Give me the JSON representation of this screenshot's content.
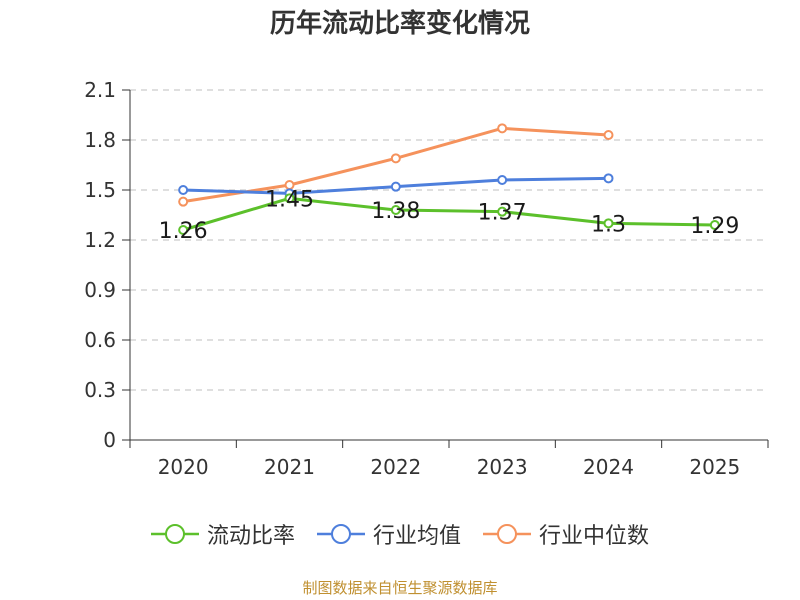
{
  "chart_data": {
    "type": "line",
    "title": "历年流动比率变化情况",
    "categories": [
      "2020",
      "2021",
      "2022",
      "2023",
      "2024",
      "2025"
    ],
    "ylim": [
      0,
      2.1
    ],
    "yticks": [
      "0",
      "0.3",
      "0.6",
      "0.9",
      "1.2",
      "1.5",
      "1.8",
      "2.1"
    ],
    "grid": true,
    "legend_position": "bottom",
    "series": [
      {
        "name": "流动比率",
        "color": "#5cc02b",
        "values": [
          1.26,
          1.45,
          1.38,
          1.37,
          1.3,
          1.29
        ],
        "data_labels": [
          "1.26",
          "1.45",
          "1.38",
          "1.37",
          "1.3",
          "1.29"
        ]
      },
      {
        "name": "行业均值",
        "color": "#4e7fdc",
        "values": [
          1.5,
          1.48,
          1.52,
          1.56,
          1.57,
          null
        ]
      },
      {
        "name": "行业中位数",
        "color": "#f5925c",
        "values": [
          1.43,
          1.53,
          1.69,
          1.87,
          1.83,
          null
        ]
      }
    ]
  },
  "source_note": "制图数据来自恒生聚源数据库"
}
